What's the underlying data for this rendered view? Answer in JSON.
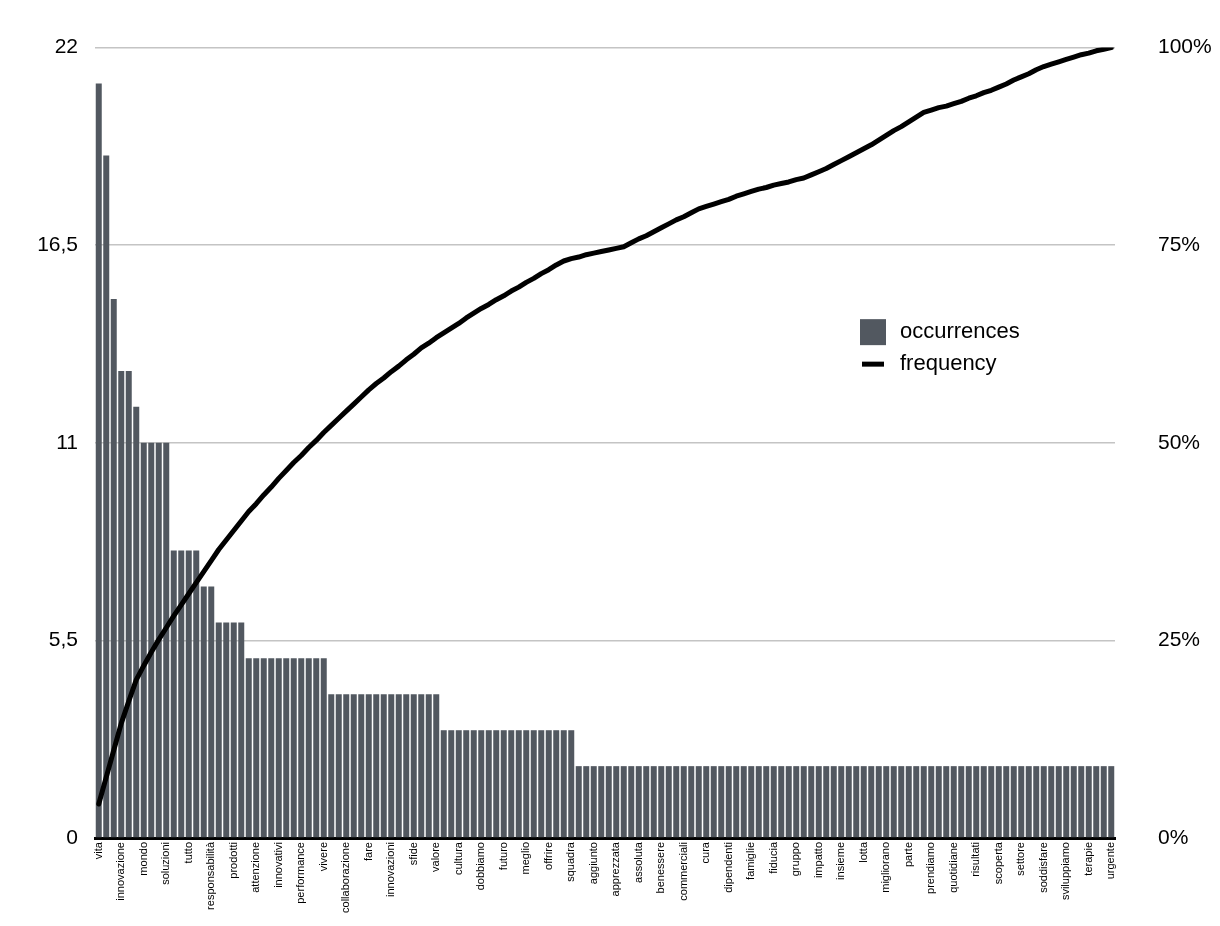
{
  "chart_data": {
    "type": "bar",
    "categories": [
      "vita",
      null,
      null,
      "innovazione",
      null,
      null,
      "mondo",
      null,
      null,
      "soluzioni",
      null,
      null,
      "tutto",
      null,
      null,
      "responsabilità",
      null,
      null,
      "prodotti",
      null,
      null,
      "attenzione",
      null,
      null,
      "innovativi",
      null,
      null,
      "performance",
      null,
      null,
      "vivere",
      null,
      null,
      "collaborazione",
      null,
      null,
      "fare",
      null,
      null,
      "innovazioni",
      null,
      null,
      "sfide",
      null,
      null,
      "valore",
      null,
      null,
      "cultura",
      null,
      null,
      "dobbiamo",
      null,
      null,
      "futuro",
      null,
      null,
      "meglio",
      null,
      null,
      "offrire",
      null,
      null,
      "squadra",
      null,
      null,
      "aggiunto",
      null,
      null,
      "apprezzata",
      null,
      null,
      "assoluta",
      null,
      null,
      "benessere",
      null,
      null,
      "commerciali",
      null,
      null,
      "cura",
      null,
      null,
      "dipendenti",
      null,
      null,
      "famiglie",
      null,
      null,
      "fiducia",
      null,
      null,
      "gruppo",
      null,
      null,
      "impatto",
      null,
      null,
      "insieme",
      null,
      null,
      "lotta",
      null,
      null,
      "migliorano",
      null,
      null,
      "parte",
      null,
      null,
      "prendiamo",
      null,
      null,
      "quotidiane",
      null,
      null,
      "risultati",
      null,
      null,
      "scoperta",
      null,
      null,
      "settore",
      null,
      null,
      "soddisfare",
      null,
      null,
      "sviluppiamo",
      null,
      null,
      "terapie",
      null,
      null,
      "urgente"
    ],
    "series": [
      {
        "name": "occurrences",
        "color": "#525860",
        "values": [
          21,
          19,
          15,
          13,
          13,
          12,
          11,
          11,
          11,
          11,
          8,
          8,
          8,
          8,
          7,
          7,
          6,
          6,
          6,
          6,
          5,
          5,
          5,
          5,
          5,
          5,
          5,
          5,
          5,
          5,
          5,
          4,
          4,
          4,
          4,
          4,
          4,
          4,
          4,
          4,
          4,
          4,
          4,
          4,
          4,
          4,
          3,
          3,
          3,
          3,
          3,
          3,
          3,
          3,
          3,
          3,
          3,
          3,
          3,
          3,
          3,
          3,
          3,
          3,
          2,
          2,
          2,
          2,
          2,
          2,
          2,
          2,
          2,
          2,
          2,
          2,
          2,
          2,
          2,
          2,
          2,
          2,
          2,
          2,
          2,
          2,
          2,
          2,
          2,
          2,
          2,
          2,
          2,
          2,
          2,
          2,
          2,
          2,
          2,
          2,
          2,
          2,
          2,
          2,
          2,
          2,
          2,
          2,
          2,
          2,
          2,
          2,
          2,
          2,
          2,
          2,
          2,
          2,
          2,
          2,
          2,
          2,
          2,
          2,
          2,
          2,
          2,
          2,
          2,
          2,
          2,
          2,
          2,
          2,
          2,
          2
        ]
      },
      {
        "name": "frequency",
        "type": "line",
        "axis": "y2",
        "color": "#000000",
        "values": [
          4.3,
          7.7,
          11.1,
          14.5,
          17.3,
          20,
          21.8,
          23.5,
          25.1,
          26.6,
          28.1,
          29.5,
          30.9,
          32.3,
          33.7,
          35.1,
          36.5,
          37.7,
          38.9,
          40.1,
          41.3,
          42.3,
          43.4,
          44.4,
          45.5,
          46.5,
          47.5,
          48.4,
          49.4,
          50.3,
          51.3,
          52.2,
          53.1,
          54,
          54.9,
          55.8,
          56.7,
          57.5,
          58.2,
          59,
          59.7,
          60.5,
          61.2,
          62,
          62.6,
          63.3,
          63.9,
          64.5,
          65.1,
          65.8,
          66.4,
          67,
          67.5,
          68.1,
          68.6,
          69.2,
          69.7,
          70.3,
          70.8,
          71.4,
          71.9,
          72.5,
          73,
          73.3,
          73.5,
          73.8,
          74,
          74.2,
          74.4,
          74.6,
          74.8,
          75.3,
          75.8,
          76.2,
          76.7,
          77.2,
          77.7,
          78.2,
          78.6,
          79.1,
          79.6,
          79.9,
          80.2,
          80.5,
          80.8,
          81.2,
          81.5,
          81.8,
          82.1,
          82.3,
          82.6,
          82.8,
          83,
          83.3,
          83.5,
          83.9,
          84.3,
          84.7,
          85.2,
          85.7,
          86.2,
          86.7,
          87.2,
          87.7,
          88.3,
          88.9,
          89.5,
          90,
          90.6,
          91.2,
          91.8,
          92.1,
          92.4,
          92.6,
          92.9,
          93.2,
          93.6,
          93.9,
          94.3,
          94.6,
          95,
          95.4,
          95.9,
          96.3,
          96.7,
          97.2,
          97.6,
          97.9,
          98.2,
          98.5,
          98.8,
          99.1,
          99.3,
          99.6,
          99.8,
          100
        ]
      }
    ],
    "ylim": [
      0,
      22
    ],
    "yticks": [
      0,
      {
        "value": 5.5,
        "label": "5,5"
      },
      11,
      {
        "value": 16.5,
        "label": "16,5"
      },
      22
    ],
    "y2lim": [
      0,
      100
    ],
    "y2ticks": [
      {
        "value": 0,
        "label": "0%"
      },
      {
        "value": 25,
        "label": "25%"
      },
      {
        "value": 50,
        "label": "50%"
      },
      {
        "value": 75,
        "label": "75%"
      },
      {
        "value": 100,
        "label": "100%"
      }
    ],
    "grid": "y",
    "legend": "right",
    "marker": "none",
    "line_style": "solid"
  }
}
